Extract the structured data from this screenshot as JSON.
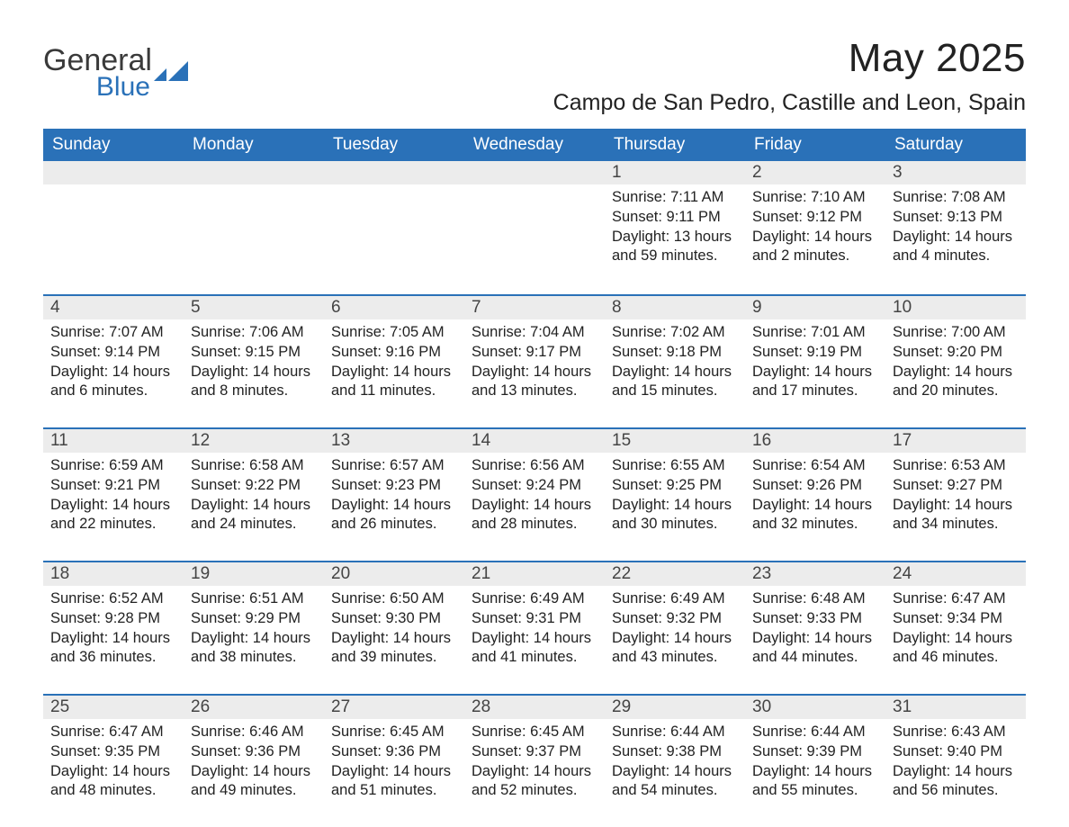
{
  "logo": {
    "line1": "General",
    "line2": "Blue"
  },
  "title": "May 2025",
  "location": "Campo de San Pedro, Castille and Leon, Spain",
  "colors": {
    "header_bg": "#2a71b8",
    "header_text": "#ffffff",
    "daynum_bg": "#ececec",
    "rule": "#2a71b8",
    "text": "#222222",
    "logo_gray": "#3a3a3a",
    "logo_blue": "#2a71b8",
    "page_bg": "#ffffff"
  },
  "fonts": {
    "body_pt": 16.5,
    "header_pt": 19,
    "title_pt": 44,
    "location_pt": 25
  },
  "day_headers": [
    "Sunday",
    "Monday",
    "Tuesday",
    "Wednesday",
    "Thursday",
    "Friday",
    "Saturday"
  ],
  "weeks": [
    [
      {
        "n": "",
        "sunrise": "",
        "sunset": "",
        "daylight": ""
      },
      {
        "n": "",
        "sunrise": "",
        "sunset": "",
        "daylight": ""
      },
      {
        "n": "",
        "sunrise": "",
        "sunset": "",
        "daylight": ""
      },
      {
        "n": "",
        "sunrise": "",
        "sunset": "",
        "daylight": ""
      },
      {
        "n": "1",
        "sunrise": "Sunrise: 7:11 AM",
        "sunset": "Sunset: 9:11 PM",
        "daylight": "Daylight: 13 hours and 59 minutes."
      },
      {
        "n": "2",
        "sunrise": "Sunrise: 7:10 AM",
        "sunset": "Sunset: 9:12 PM",
        "daylight": "Daylight: 14 hours and 2 minutes."
      },
      {
        "n": "3",
        "sunrise": "Sunrise: 7:08 AM",
        "sunset": "Sunset: 9:13 PM",
        "daylight": "Daylight: 14 hours and 4 minutes."
      }
    ],
    [
      {
        "n": "4",
        "sunrise": "Sunrise: 7:07 AM",
        "sunset": "Sunset: 9:14 PM",
        "daylight": "Daylight: 14 hours and 6 minutes."
      },
      {
        "n": "5",
        "sunrise": "Sunrise: 7:06 AM",
        "sunset": "Sunset: 9:15 PM",
        "daylight": "Daylight: 14 hours and 8 minutes."
      },
      {
        "n": "6",
        "sunrise": "Sunrise: 7:05 AM",
        "sunset": "Sunset: 9:16 PM",
        "daylight": "Daylight: 14 hours and 11 minutes."
      },
      {
        "n": "7",
        "sunrise": "Sunrise: 7:04 AM",
        "sunset": "Sunset: 9:17 PM",
        "daylight": "Daylight: 14 hours and 13 minutes."
      },
      {
        "n": "8",
        "sunrise": "Sunrise: 7:02 AM",
        "sunset": "Sunset: 9:18 PM",
        "daylight": "Daylight: 14 hours and 15 minutes."
      },
      {
        "n": "9",
        "sunrise": "Sunrise: 7:01 AM",
        "sunset": "Sunset: 9:19 PM",
        "daylight": "Daylight: 14 hours and 17 minutes."
      },
      {
        "n": "10",
        "sunrise": "Sunrise: 7:00 AM",
        "sunset": "Sunset: 9:20 PM",
        "daylight": "Daylight: 14 hours and 20 minutes."
      }
    ],
    [
      {
        "n": "11",
        "sunrise": "Sunrise: 6:59 AM",
        "sunset": "Sunset: 9:21 PM",
        "daylight": "Daylight: 14 hours and 22 minutes."
      },
      {
        "n": "12",
        "sunrise": "Sunrise: 6:58 AM",
        "sunset": "Sunset: 9:22 PM",
        "daylight": "Daylight: 14 hours and 24 minutes."
      },
      {
        "n": "13",
        "sunrise": "Sunrise: 6:57 AM",
        "sunset": "Sunset: 9:23 PM",
        "daylight": "Daylight: 14 hours and 26 minutes."
      },
      {
        "n": "14",
        "sunrise": "Sunrise: 6:56 AM",
        "sunset": "Sunset: 9:24 PM",
        "daylight": "Daylight: 14 hours and 28 minutes."
      },
      {
        "n": "15",
        "sunrise": "Sunrise: 6:55 AM",
        "sunset": "Sunset: 9:25 PM",
        "daylight": "Daylight: 14 hours and 30 minutes."
      },
      {
        "n": "16",
        "sunrise": "Sunrise: 6:54 AM",
        "sunset": "Sunset: 9:26 PM",
        "daylight": "Daylight: 14 hours and 32 minutes."
      },
      {
        "n": "17",
        "sunrise": "Sunrise: 6:53 AM",
        "sunset": "Sunset: 9:27 PM",
        "daylight": "Daylight: 14 hours and 34 minutes."
      }
    ],
    [
      {
        "n": "18",
        "sunrise": "Sunrise: 6:52 AM",
        "sunset": "Sunset: 9:28 PM",
        "daylight": "Daylight: 14 hours and 36 minutes."
      },
      {
        "n": "19",
        "sunrise": "Sunrise: 6:51 AM",
        "sunset": "Sunset: 9:29 PM",
        "daylight": "Daylight: 14 hours and 38 minutes."
      },
      {
        "n": "20",
        "sunrise": "Sunrise: 6:50 AM",
        "sunset": "Sunset: 9:30 PM",
        "daylight": "Daylight: 14 hours and 39 minutes."
      },
      {
        "n": "21",
        "sunrise": "Sunrise: 6:49 AM",
        "sunset": "Sunset: 9:31 PM",
        "daylight": "Daylight: 14 hours and 41 minutes."
      },
      {
        "n": "22",
        "sunrise": "Sunrise: 6:49 AM",
        "sunset": "Sunset: 9:32 PM",
        "daylight": "Daylight: 14 hours and 43 minutes."
      },
      {
        "n": "23",
        "sunrise": "Sunrise: 6:48 AM",
        "sunset": "Sunset: 9:33 PM",
        "daylight": "Daylight: 14 hours and 44 minutes."
      },
      {
        "n": "24",
        "sunrise": "Sunrise: 6:47 AM",
        "sunset": "Sunset: 9:34 PM",
        "daylight": "Daylight: 14 hours and 46 minutes."
      }
    ],
    [
      {
        "n": "25",
        "sunrise": "Sunrise: 6:47 AM",
        "sunset": "Sunset: 9:35 PM",
        "daylight": "Daylight: 14 hours and 48 minutes."
      },
      {
        "n": "26",
        "sunrise": "Sunrise: 6:46 AM",
        "sunset": "Sunset: 9:36 PM",
        "daylight": "Daylight: 14 hours and 49 minutes."
      },
      {
        "n": "27",
        "sunrise": "Sunrise: 6:45 AM",
        "sunset": "Sunset: 9:36 PM",
        "daylight": "Daylight: 14 hours and 51 minutes."
      },
      {
        "n": "28",
        "sunrise": "Sunrise: 6:45 AM",
        "sunset": "Sunset: 9:37 PM",
        "daylight": "Daylight: 14 hours and 52 minutes."
      },
      {
        "n": "29",
        "sunrise": "Sunrise: 6:44 AM",
        "sunset": "Sunset: 9:38 PM",
        "daylight": "Daylight: 14 hours and 54 minutes."
      },
      {
        "n": "30",
        "sunrise": "Sunrise: 6:44 AM",
        "sunset": "Sunset: 9:39 PM",
        "daylight": "Daylight: 14 hours and 55 minutes."
      },
      {
        "n": "31",
        "sunrise": "Sunrise: 6:43 AM",
        "sunset": "Sunset: 9:40 PM",
        "daylight": "Daylight: 14 hours and 56 minutes."
      }
    ]
  ]
}
